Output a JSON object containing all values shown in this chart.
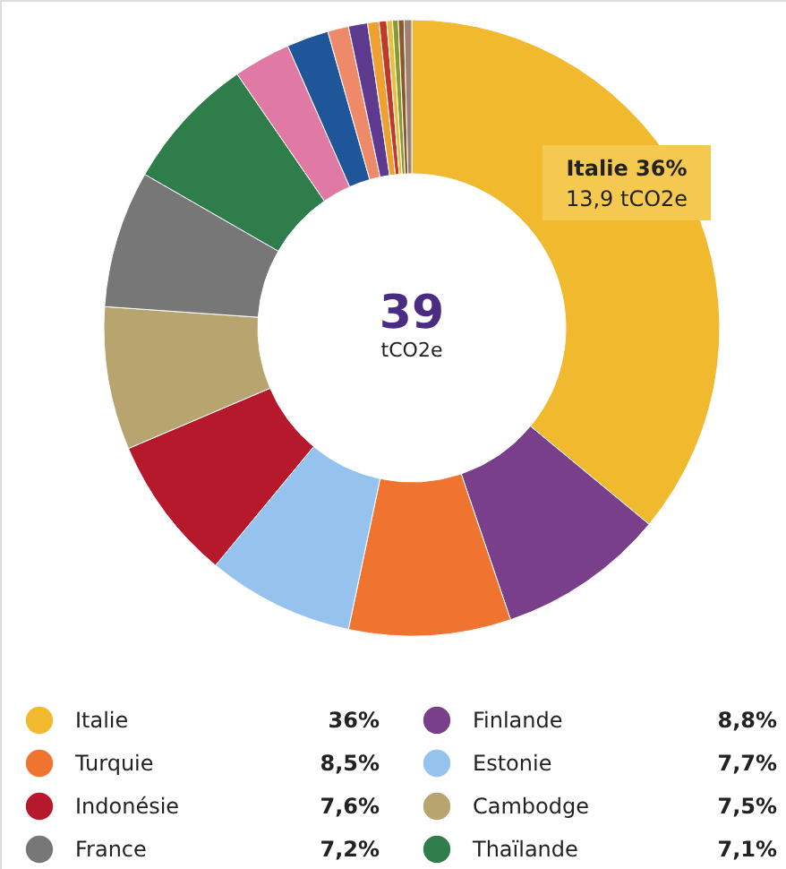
{
  "chart_data": {
    "type": "donut",
    "title": "39",
    "subtitle": "tCO2e",
    "categories": [
      "Italie",
      "Finlande",
      "Turquie",
      "Estonie",
      "Indonésie",
      "Cambodge",
      "France",
      "Thaïlande",
      null,
      null,
      null,
      null,
      null,
      null,
      null,
      null,
      null,
      null
    ],
    "values": [
      36,
      8.8,
      8.5,
      7.7,
      7.6,
      7.5,
      7.2,
      7.1,
      3.0,
      2.2,
      1.1,
      1.0,
      0.6,
      0.4,
      0.3,
      0.3,
      0.3,
      0.4
    ],
    "value_labels": [
      "36%",
      "8,8%",
      "8,5%",
      "7,7%",
      "7,6%",
      "7,5%",
      "7,2%",
      "7,1%",
      null,
      null,
      null,
      null,
      null,
      null,
      null,
      null,
      null,
      null
    ],
    "colors": [
      "#f0b92e",
      "#7a3f8a",
      "#ee7430",
      "#96c3ee",
      "#b5192b",
      "#b8a46f",
      "#777777",
      "#2e7d4a",
      "#e07aa5",
      "#1f5699",
      "#ee8a6a",
      "#5d3a8e",
      "#f0a030",
      "#c0392b",
      "#e8c040",
      "#8a9a30",
      "#8b5a2b",
      "#a08070"
    ],
    "legend": "bottom",
    "annotations": [
      "Italie 36%",
      "13,9 tCO2e"
    ]
  }
}
